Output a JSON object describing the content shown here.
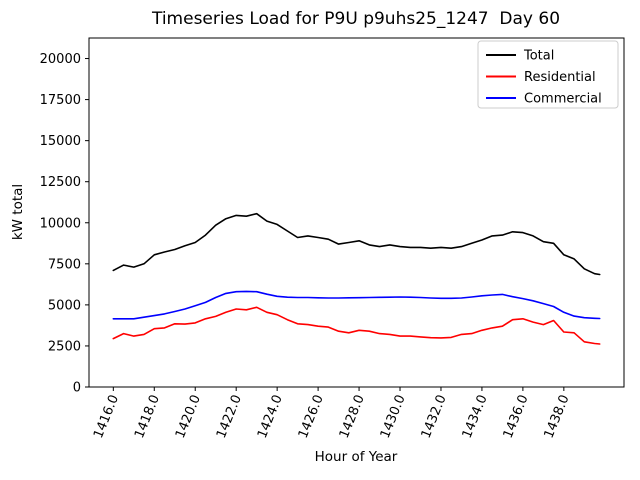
{
  "chart_data": {
    "type": "line",
    "title": "Timeseries Load for P9U p9uhs25_1247  Day 60",
    "xlabel": "Hour of Year",
    "ylabel": "kW total",
    "xlim": [
      1414.8125,
      1440.9375
    ],
    "ylim": [
      0,
      21250
    ],
    "grid": false,
    "legend_position": "upper right",
    "xticks": [
      1416,
      1418,
      1420,
      1422,
      1424,
      1426,
      1428,
      1430,
      1432,
      1434,
      1436,
      1438
    ],
    "xtick_labels": [
      "1416.0",
      "1418.0",
      "1420.0",
      "1422.0",
      "1424.0",
      "1426.0",
      "1428.0",
      "1430.0",
      "1432.0",
      "1434.0",
      "1436.0",
      "1438.0"
    ],
    "yticks": [
      0,
      2500,
      5000,
      7500,
      10000,
      12500,
      15000,
      17500,
      20000
    ],
    "ytick_labels": [
      "0",
      "2500",
      "5000",
      "7500",
      "10000",
      "12500",
      "15000",
      "17500",
      "20000"
    ],
    "x": [
      1416.0,
      1416.5,
      1417.0,
      1417.5,
      1418.0,
      1418.5,
      1419.0,
      1419.5,
      1420.0,
      1420.5,
      1421.0,
      1421.5,
      1422.0,
      1422.5,
      1423.0,
      1423.5,
      1424.0,
      1424.5,
      1425.0,
      1425.5,
      1426.0,
      1426.5,
      1427.0,
      1427.5,
      1428.0,
      1428.5,
      1429.0,
      1429.5,
      1430.0,
      1430.5,
      1431.0,
      1431.5,
      1432.0,
      1432.5,
      1433.0,
      1433.5,
      1434.0,
      1434.5,
      1435.0,
      1435.5,
      1436.0,
      1436.5,
      1437.0,
      1437.5,
      1438.0,
      1438.5,
      1439.0,
      1439.5,
      1439.75
    ],
    "series": [
      {
        "name": "Total",
        "color": "#000000",
        "values": [
          7100,
          7420,
          7300,
          7500,
          8050,
          8220,
          8370,
          8600,
          8800,
          9250,
          9850,
          10250,
          10450,
          10400,
          10550,
          10100,
          9900,
          9500,
          9100,
          9200,
          9100,
          9000,
          8700,
          8800,
          8900,
          8650,
          8550,
          8650,
          8550,
          8500,
          8500,
          8450,
          8500,
          8450,
          8550,
          8750,
          8950,
          9200,
          9250,
          9450,
          9400,
          9200,
          8850,
          8750,
          8050,
          7800,
          7200,
          6900,
          6850
        ]
      },
      {
        "name": "Residential",
        "color": "#ff0000",
        "values": [
          2950,
          3250,
          3100,
          3200,
          3550,
          3600,
          3850,
          3830,
          3900,
          4150,
          4300,
          4550,
          4750,
          4700,
          4850,
          4550,
          4400,
          4100,
          3850,
          3800,
          3700,
          3650,
          3400,
          3300,
          3450,
          3400,
          3250,
          3200,
          3100,
          3100,
          3050,
          3000,
          2990,
          3020,
          3200,
          3250,
          3450,
          3600,
          3700,
          4100,
          4150,
          3950,
          3800,
          4050,
          3350,
          3300,
          2750,
          2650,
          2620
        ]
      },
      {
        "name": "Commercial",
        "color": "#0000ff",
        "values": [
          4150,
          4150,
          4150,
          4250,
          4350,
          4450,
          4600,
          4750,
          4950,
          5150,
          5450,
          5700,
          5800,
          5820,
          5800,
          5650,
          5520,
          5470,
          5450,
          5450,
          5430,
          5420,
          5420,
          5430,
          5440,
          5450,
          5460,
          5470,
          5480,
          5470,
          5450,
          5420,
          5400,
          5400,
          5420,
          5480,
          5550,
          5600,
          5640,
          5500,
          5380,
          5250,
          5080,
          4900,
          4550,
          4320,
          4220,
          4180,
          4170
        ]
      }
    ]
  }
}
